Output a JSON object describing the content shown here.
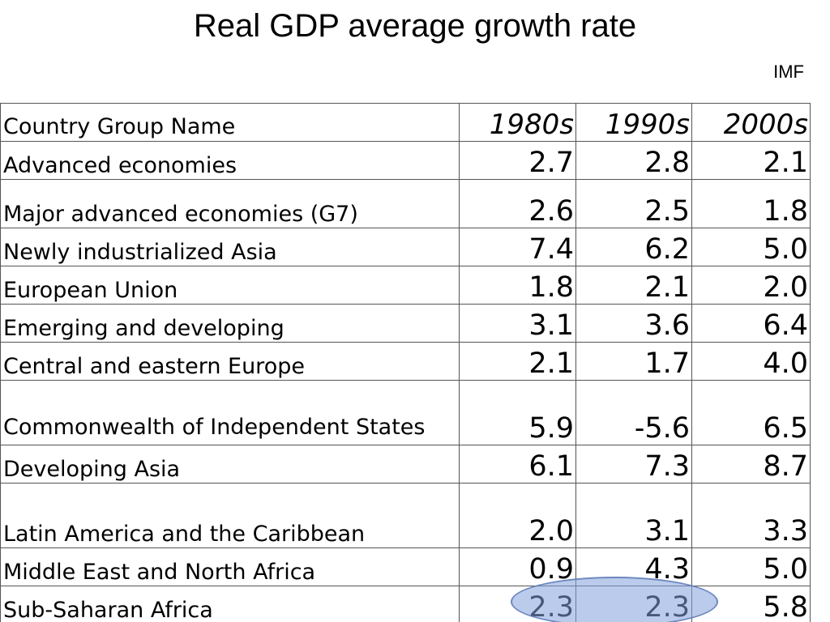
{
  "title": "Real GDP average growth rate",
  "source": "IMF",
  "table": {
    "header": {
      "name": "Country Group Name",
      "years": [
        "1980s",
        "1990s",
        "2000s"
      ]
    },
    "rows": [
      {
        "name": "Advanced economies",
        "values": [
          "2.7",
          "2.8",
          "2.1"
        ]
      },
      {
        "name": "Major advanced economies (G7)",
        "values": [
          "2.6",
          "2.5",
          "1.8"
        ]
      },
      {
        "name": "Newly industrialized Asia",
        "values": [
          "7.4",
          "6.2",
          "5.0"
        ]
      },
      {
        "name": "European Union",
        "values": [
          "1.8",
          "2.1",
          "2.0"
        ]
      },
      {
        "name": "Emerging and developing",
        "values": [
          "3.1",
          "3.6",
          "6.4"
        ]
      },
      {
        "name": "Central and eastern Europe",
        "values": [
          "2.1",
          "1.7",
          "4.0"
        ]
      },
      {
        "name": "Commonwealth of Independent States",
        "values": [
          "5.9",
          "-5.6",
          "6.5"
        ]
      },
      {
        "name": "Developing Asia",
        "values": [
          "6.1",
          "7.3",
          "8.7"
        ]
      },
      {
        "name": "Latin America and the Caribbean",
        "values": [
          "2.0",
          "3.1",
          "3.3"
        ]
      },
      {
        "name": "Middle East and North Africa",
        "values": [
          "0.9",
          "4.3",
          "5.0"
        ]
      },
      {
        "name": "Sub-Saharan Africa",
        "values": [
          "2.3",
          "2.3",
          "5.8"
        ]
      }
    ]
  },
  "highlight_color": "#82a0dc"
}
